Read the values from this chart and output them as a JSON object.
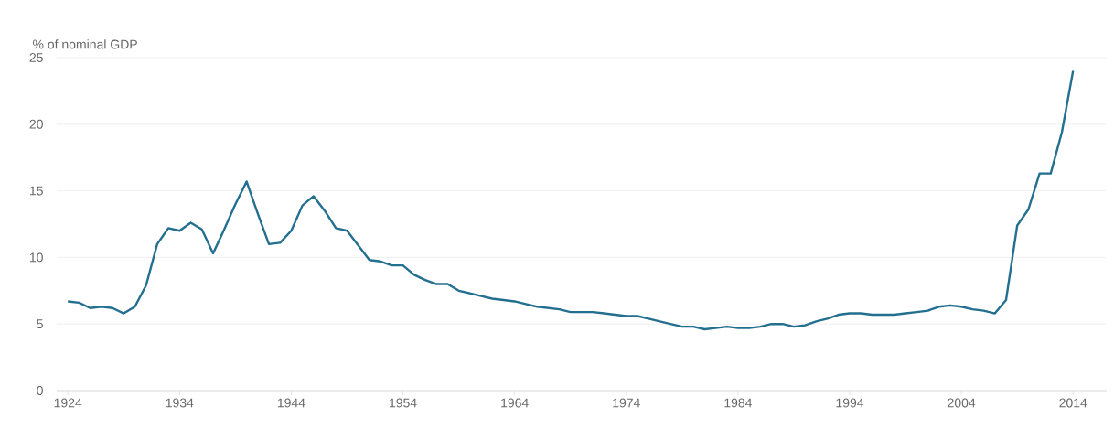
{
  "chart_data": {
    "type": "line",
    "ylabel": "% of nominal GDP",
    "x": [
      1924,
      1925,
      1926,
      1927,
      1928,
      1929,
      1930,
      1931,
      1932,
      1933,
      1934,
      1935,
      1936,
      1937,
      1938,
      1939,
      1940,
      1941,
      1942,
      1943,
      1944,
      1945,
      1946,
      1947,
      1948,
      1949,
      1950,
      1951,
      1952,
      1953,
      1954,
      1955,
      1956,
      1957,
      1958,
      1959,
      1960,
      1961,
      1962,
      1963,
      1964,
      1965,
      1966,
      1967,
      1968,
      1969,
      1970,
      1971,
      1972,
      1973,
      1974,
      1975,
      1976,
      1977,
      1978,
      1979,
      1980,
      1981,
      1982,
      1983,
      1984,
      1985,
      1986,
      1987,
      1988,
      1989,
      1990,
      1991,
      1992,
      1993,
      1994,
      1995,
      1996,
      1997,
      1998,
      1999,
      2000,
      2001,
      2002,
      2003,
      2004,
      2005,
      2006,
      2007,
      2008,
      2009,
      2010,
      2011,
      2012,
      2013,
      2014
    ],
    "series": [
      {
        "color": "#236f8f",
        "values": [
          6.7,
          6.6,
          6.2,
          6.3,
          6.2,
          5.8,
          6.3,
          7.9,
          11.0,
          12.2,
          12.0,
          12.6,
          12.1,
          10.3,
          12.1,
          14.0,
          15.7,
          13.3,
          11.0,
          11.1,
          12.0,
          13.9,
          14.6,
          13.5,
          12.2,
          12.0,
          10.9,
          9.8,
          9.7,
          9.4,
          9.4,
          8.7,
          8.3,
          8.0,
          8.0,
          7.5,
          7.3,
          7.1,
          6.9,
          6.8,
          6.7,
          6.5,
          6.3,
          6.2,
          6.1,
          5.9,
          5.9,
          5.9,
          5.8,
          5.7,
          5.6,
          5.6,
          5.4,
          5.2,
          5.0,
          4.8,
          4.8,
          4.6,
          4.7,
          4.8,
          4.7,
          4.7,
          4.8,
          5.0,
          5.0,
          4.8,
          4.9,
          5.2,
          5.4,
          5.7,
          5.8,
          5.8,
          5.7,
          5.7,
          5.7,
          5.8,
          5.9,
          6.0,
          6.3,
          6.4,
          6.3,
          6.1,
          6.0,
          5.8,
          6.8,
          12.4,
          13.6,
          16.3,
          16.3,
          19.4,
          24.0
        ]
      }
    ],
    "xlim": [
      1923,
      2017
    ],
    "xticks": [
      1924,
      1934,
      1944,
      1954,
      1964,
      1974,
      1984,
      1994,
      2004,
      2014
    ],
    "ylim": [
      0,
      25
    ],
    "yticks": [
      0,
      5,
      10,
      15,
      20,
      25
    ],
    "grid": "y",
    "marker": "none",
    "line_style": "solid"
  }
}
